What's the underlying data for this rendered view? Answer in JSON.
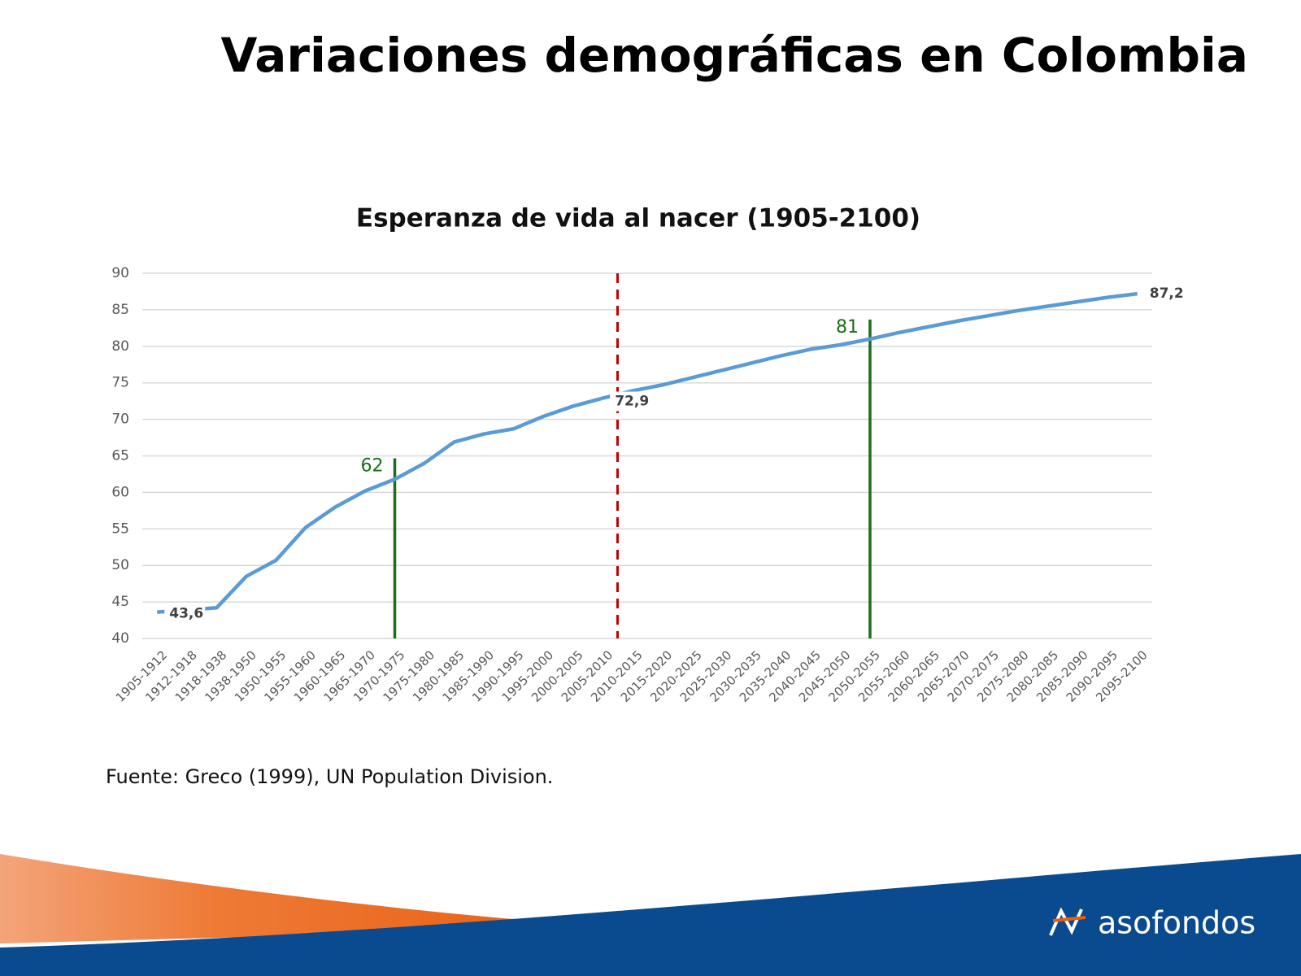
{
  "slide_title": "Variaciones demográficas en Colombia",
  "chart_data": {
    "type": "line",
    "title": "Esperanza de vida al nacer (1905-2100)",
    "categories": [
      "1905-1912",
      "1912-1918",
      "1918-1938",
      "1938-1950",
      "1950-1955",
      "1955-1960",
      "1960-1965",
      "1965-1970",
      "1970-1975",
      "1975-1980",
      "1980-1985",
      "1985-1990",
      "1990-1995",
      "1995-2000",
      "2000-2005",
      "2005-2010",
      "2010-2015",
      "2015-2020",
      "2020-2025",
      "2025-2030",
      "2030-2035",
      "2035-2040",
      "2040-2045",
      "2045-2050",
      "2050-2055",
      "2055-2060",
      "2060-2065",
      "2065-2070",
      "2070-2075",
      "2075-2080",
      "2080-2085",
      "2085-2090",
      "2090-2095",
      "2095-2100"
    ],
    "values": [
      43.6,
      43.9,
      44.2,
      48.5,
      50.7,
      55.2,
      58.0,
      60.2,
      61.8,
      64.0,
      66.9,
      68.0,
      68.7,
      70.4,
      71.8,
      72.9,
      73.9,
      74.7,
      75.7,
      76.7,
      77.7,
      78.7,
      79.6,
      80.2,
      81.0,
      81.9,
      82.7,
      83.5,
      84.2,
      84.9,
      85.5,
      86.1,
      86.7,
      87.2
    ],
    "value_labels": [
      "43,6",
      null,
      null,
      null,
      null,
      null,
      null,
      null,
      null,
      null,
      null,
      null,
      null,
      null,
      null,
      "72,9",
      null,
      null,
      null,
      null,
      null,
      null,
      null,
      null,
      null,
      null,
      null,
      null,
      null,
      null,
      null,
      null,
      null,
      "87,2"
    ],
    "color": "#5b9bd5",
    "ylim": [
      40,
      90
    ],
    "yticks": [
      40,
      45,
      50,
      55,
      60,
      65,
      70,
      75,
      80,
      85,
      90
    ],
    "grid": true,
    "annotations": [
      {
        "text": "62",
        "x": "1970-1975",
        "value": 62
      },
      {
        "text": "81",
        "x": "2050-2055",
        "value": 81
      }
    ],
    "annotation_color": "#1e6b1e",
    "reference_line_color": "#c00000"
  },
  "source": "Fuente: Greco (1999), UN Population Division.",
  "logo": "asofondos"
}
